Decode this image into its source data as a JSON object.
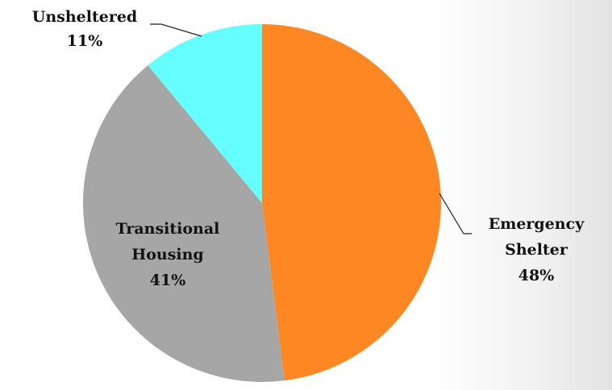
{
  "chart_data": {
    "type": "pie",
    "categories": [
      "Emergency Shelter",
      "Transitional Housing",
      "Unsheltered"
    ],
    "values": [
      48,
      41,
      11
    ],
    "value_labels": [
      "48%",
      "41%",
      "11%"
    ],
    "colors": [
      "#fd8722",
      "#a6a6a6",
      "#66ffff"
    ]
  }
}
